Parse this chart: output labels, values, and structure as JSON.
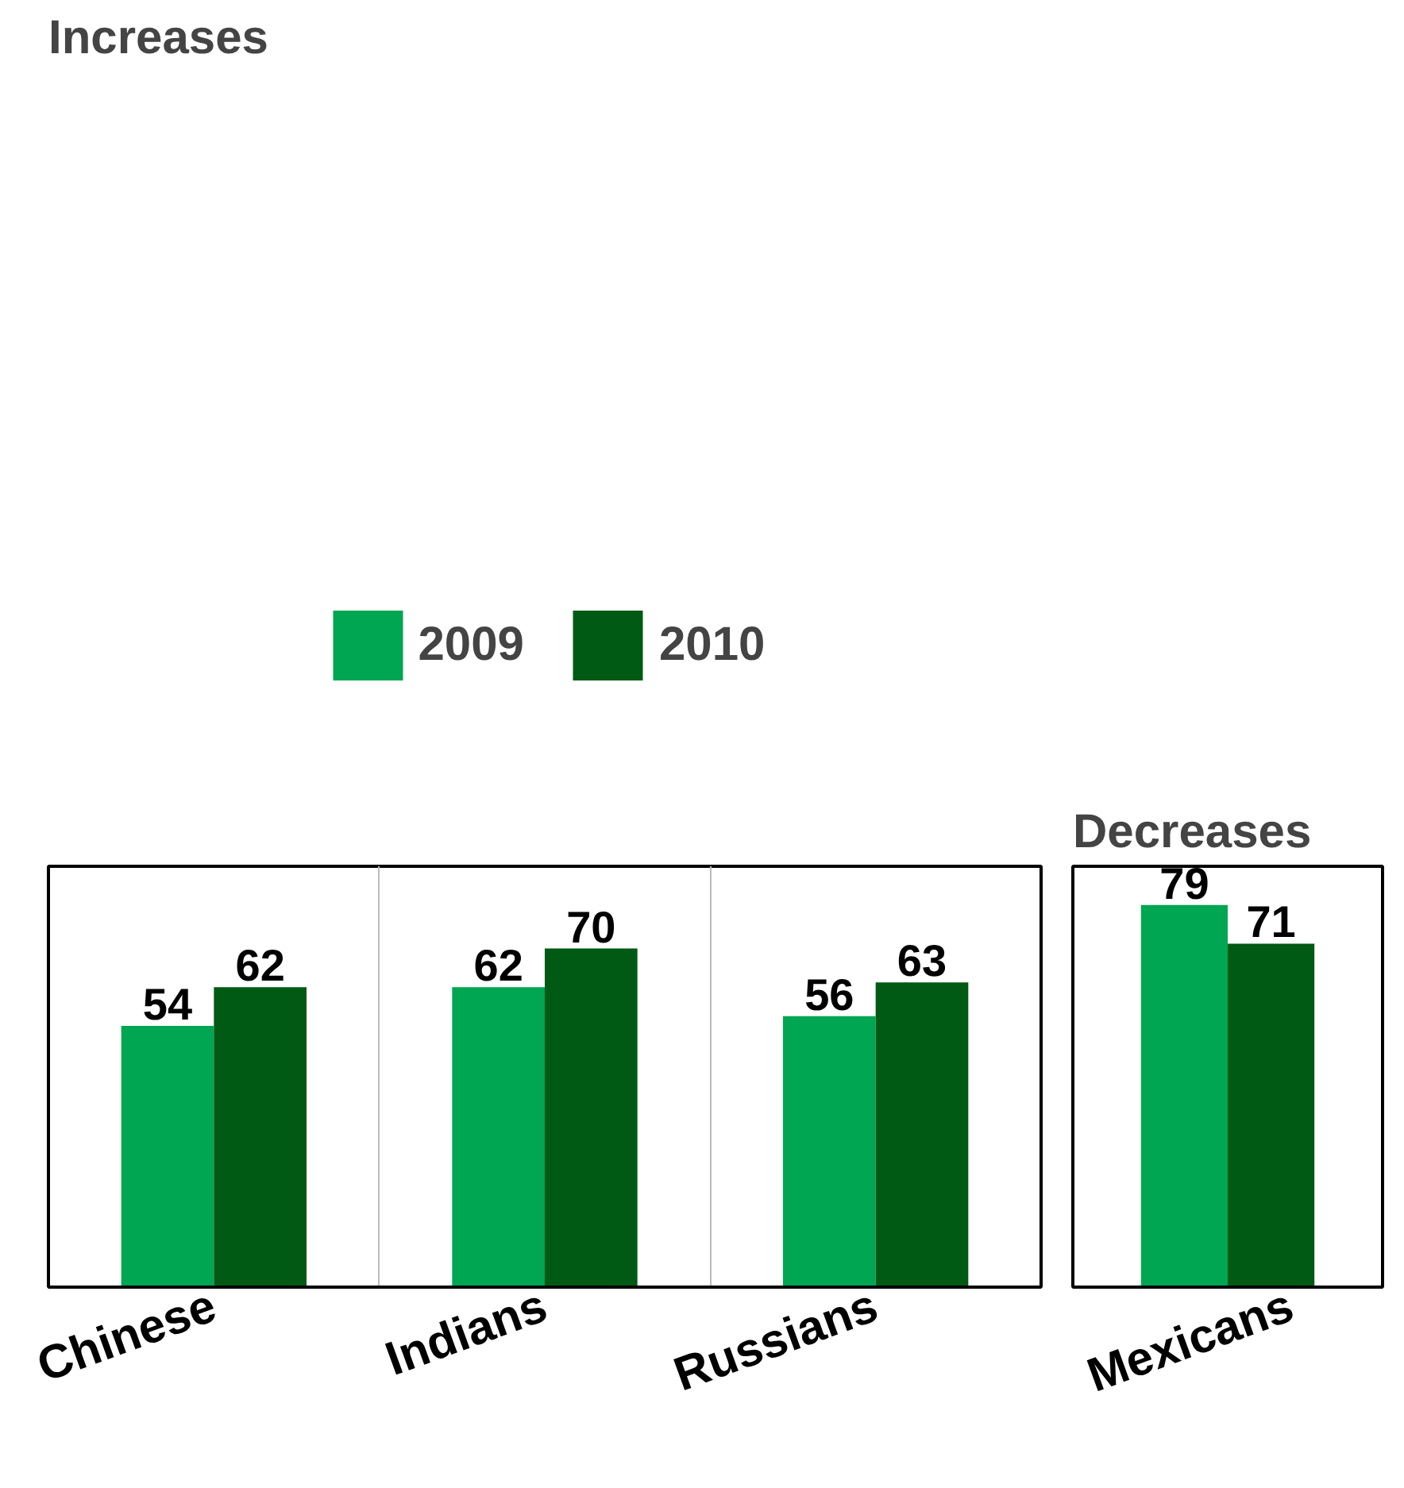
{
  "chart_data": [
    {
      "type": "bar",
      "title": "Increases",
      "categories": [
        "Chinese",
        "Indians",
        "Russians"
      ],
      "series": [
        {
          "name": "2009",
          "color": "#00a651",
          "values": [
            54,
            62,
            56
          ]
        },
        {
          "name": "2010",
          "color": "#005a14",
          "values": [
            62,
            70,
            63
          ]
        }
      ],
      "ylim": [
        0,
        87
      ],
      "tick_labels": "x",
      "data_labels": true,
      "grid": "x",
      "legend": "top"
    },
    {
      "type": "bar",
      "title": "Decreases",
      "categories": [
        "Mexicans"
      ],
      "series": [
        {
          "color": "#00a651",
          "values": [
            79
          ]
        },
        {
          "color": "#005a14",
          "values": [
            71
          ]
        }
      ],
      "ylim": [
        0,
        87
      ],
      "tick_labels": "x",
      "data_labels": true,
      "grid": false,
      "legend": false
    }
  ]
}
